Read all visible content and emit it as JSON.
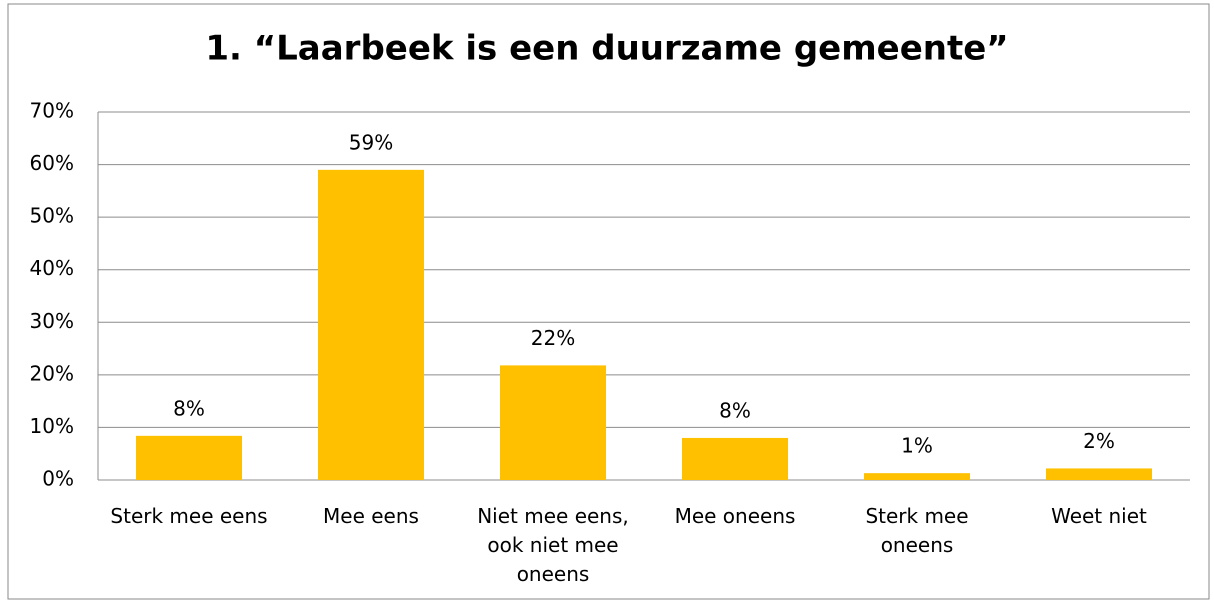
{
  "chart_data": {
    "type": "bar",
    "title": "1. “Laarbeek is een duurzame gemeente”",
    "categories": [
      "Sterk mee eens",
      "Mee eens",
      "Niet mee eens, ook niet mee oneens",
      "Mee oneens",
      "Sterk mee oneens",
      "Weet niet"
    ],
    "values": [
      8.4,
      59,
      21.8,
      8,
      1.3,
      2.2
    ],
    "value_labels": [
      "8%",
      "59%",
      "22%",
      "8%",
      "1%",
      "2%"
    ],
    "color": "#ffc000",
    "ylim": [
      0,
      70
    ],
    "yticks": [
      {
        "value": 0,
        "label": "0%"
      },
      {
        "value": 10,
        "label": "10%"
      },
      {
        "value": 20,
        "label": "20%"
      },
      {
        "value": 30,
        "label": "30%"
      },
      {
        "value": 40,
        "label": "40%"
      },
      {
        "value": 50,
        "label": "50%"
      },
      {
        "value": 60,
        "label": "60%"
      },
      {
        "value": 70,
        "label": "70%"
      }
    ],
    "grid": true
  }
}
